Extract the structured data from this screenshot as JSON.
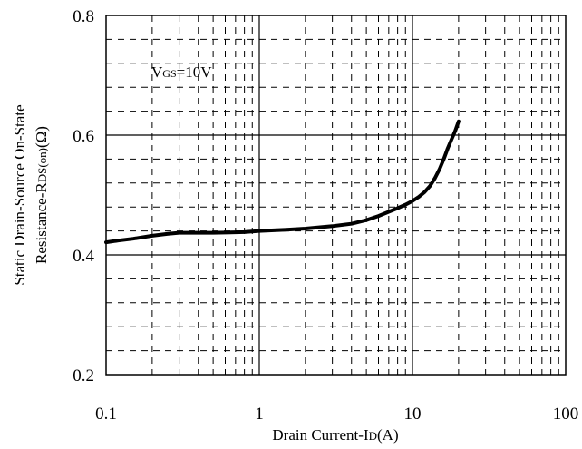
{
  "chart_data": {
    "type": "line",
    "xscale": "log",
    "xlim": [
      0.1,
      100
    ],
    "ylim": [
      0.2,
      0.8
    ],
    "grid": "major solid, minor dashed",
    "x_ticks": [
      "0.1",
      "1",
      "10",
      "100"
    ],
    "y_ticks": [
      "0.2",
      "0.4",
      "0.6",
      "0.8"
    ],
    "xlabel": {
      "prefix": "Drain Current-I",
      "sub": "D",
      "suffix": "(A)"
    },
    "ylabel": {
      "line1": "Static Drain-Source On-State",
      "line2_prefix": "Resistance-R",
      "line2_sub": "DS(on)",
      "line2_suffix": "(Ω)"
    },
    "annotation": {
      "prefix": "V",
      "sub": "GS",
      "suffix": "=10V"
    },
    "series": [
      {
        "x": [
          0.1,
          0.12,
          0.15,
          0.2,
          0.25,
          0.3,
          0.5,
          0.8,
          1,
          1.5,
          2,
          3,
          4,
          5,
          6,
          7,
          8,
          9,
          10,
          11,
          12,
          13,
          14,
          15,
          16,
          17,
          18,
          19,
          20
        ],
        "y": [
          0.421,
          0.424,
          0.427,
          0.432,
          0.435,
          0.437,
          0.437,
          0.438,
          0.44,
          0.442,
          0.444,
          0.448,
          0.452,
          0.458,
          0.465,
          0.472,
          0.478,
          0.484,
          0.49,
          0.497,
          0.505,
          0.515,
          0.528,
          0.543,
          0.56,
          0.578,
          0.593,
          0.607,
          0.623
        ]
      }
    ]
  }
}
